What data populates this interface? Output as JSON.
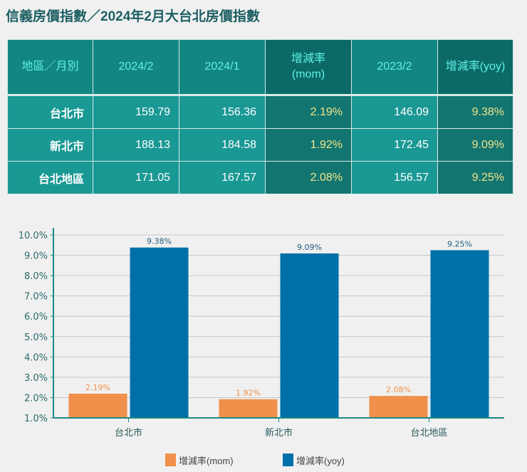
{
  "title": "信義房價指數／2024年2月大台北房價指數",
  "table": {
    "headers": [
      "地區／月別",
      "2024/2",
      "2024/1",
      "增減率(mom)",
      "2023/2",
      "增減率(yoy)"
    ],
    "rows": [
      [
        "台北市",
        "159.79",
        "156.36",
        "2.19%",
        "146.09",
        "9.38%"
      ],
      [
        "新北市",
        "188.13",
        "184.58",
        "1.92%",
        "172.45",
        "9.09%"
      ],
      [
        "台北地區",
        "171.05",
        "167.57",
        "2.08%",
        "156.57",
        "9.25%"
      ]
    ]
  },
  "chart_data": {
    "type": "bar",
    "categories": [
      "台北市",
      "新北市",
      "台北地區"
    ],
    "series": [
      {
        "name": "增減率(mom)",
        "values": [
          2.19,
          1.92,
          2.08
        ],
        "labels": [
          "2.19%",
          "1.92%",
          "2.08%"
        ],
        "color": "#f0904a"
      },
      {
        "name": "增減率(yoy)",
        "values": [
          9.38,
          9.09,
          9.25
        ],
        "labels": [
          "9.38%",
          "9.09%",
          "9.25%"
        ],
        "color": "#0070a8"
      }
    ],
    "ylim": [
      1,
      10
    ],
    "yticks": [
      "1.0%",
      "2.0%",
      "3.0%",
      "4.0%",
      "5.0%",
      "6.0%",
      "7.0%",
      "8.0%",
      "9.0%",
      "10.0%"
    ],
    "grid": true,
    "legend": "bottom"
  }
}
